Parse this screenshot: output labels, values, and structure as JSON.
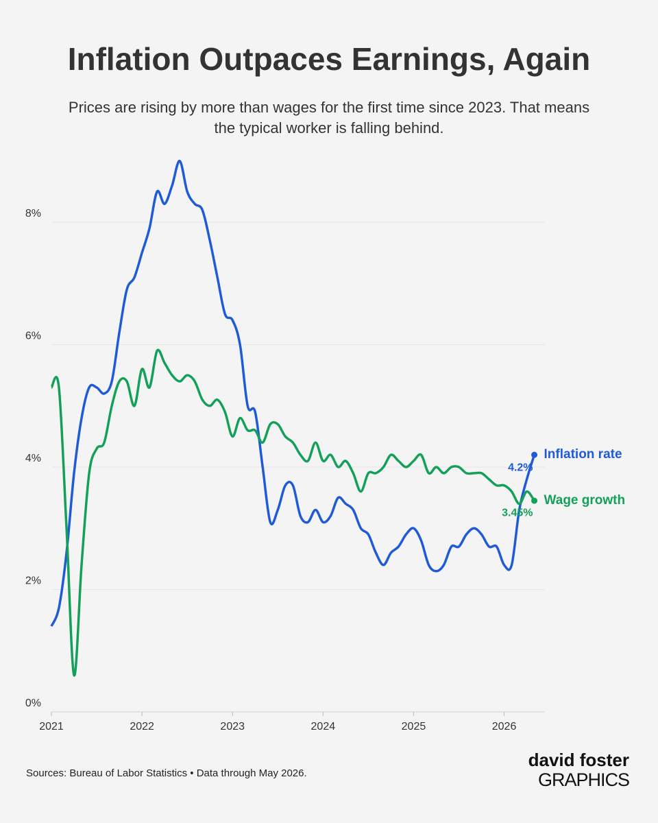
{
  "chart_data": {
    "type": "line",
    "title": "Inflation Outpaces Earnings, Again",
    "subtitle": [
      "Prices are rising by more than wages for the first time since 2023. That means",
      "the typical worker is falling behind."
    ],
    "x": [
      2021,
      2021.083,
      2021.167,
      2021.25,
      2021.333,
      2021.417,
      2021.5,
      2021.583,
      2021.667,
      2021.75,
      2021.833,
      2021.917,
      2022,
      2022.083,
      2022.167,
      2022.25,
      2022.333,
      2022.417,
      2022.5,
      2022.583,
      2022.667,
      2022.75,
      2022.833,
      2022.917,
      2023,
      2023.083,
      2023.167,
      2023.25,
      2023.333,
      2023.417,
      2023.5,
      2023.583,
      2023.667,
      2023.75,
      2023.833,
      2023.917,
      2024,
      2024.083,
      2024.167,
      2024.25,
      2024.333,
      2024.417,
      2024.5,
      2024.583,
      2024.667,
      2024.75,
      2024.833,
      2024.917,
      2025,
      2025.083,
      2025.167,
      2025.25,
      2025.333,
      2025.417,
      2025.5,
      2025.583,
      2025.667,
      2025.75,
      2025.833,
      2025.917,
      2026,
      2026.083,
      2026.167,
      2026.25,
      2026.333
    ],
    "series": [
      {
        "name": "Inflation rate",
        "color": "#1f5bd6",
        "end_label": "4.2%",
        "values": [
          1.4,
          1.7,
          2.6,
          3.9,
          4.8,
          5.3,
          5.3,
          5.2,
          5.4,
          6.2,
          6.9,
          7.1,
          7.5,
          7.9,
          8.5,
          8.3,
          8.6,
          9.0,
          8.5,
          8.3,
          8.2,
          7.7,
          7.1,
          6.5,
          6.4,
          6.0,
          5.0,
          4.9,
          4.0,
          3.1,
          3.3,
          3.7,
          3.7,
          3.2,
          3.1,
          3.3,
          3.1,
          3.2,
          3.5,
          3.4,
          3.3,
          3.0,
          2.9,
          2.6,
          2.4,
          2.6,
          2.7,
          2.9,
          3.0,
          2.8,
          2.4,
          2.3,
          2.4,
          2.7,
          2.7,
          2.9,
          3.0,
          2.9,
          2.7,
          2.7,
          2.4,
          2.4,
          3.3,
          3.8,
          4.2
        ]
      },
      {
        "name": "Wage growth",
        "color": "#14a05a",
        "end_label": "3.45%",
        "values": [
          5.3,
          5.3,
          3.0,
          0.6,
          2.4,
          3.9,
          4.3,
          4.4,
          5.0,
          5.4,
          5.4,
          5.0,
          5.6,
          5.3,
          5.9,
          5.7,
          5.5,
          5.4,
          5.5,
          5.4,
          5.1,
          5.0,
          5.1,
          4.9,
          4.5,
          4.8,
          4.6,
          4.6,
          4.4,
          4.7,
          4.7,
          4.5,
          4.4,
          4.2,
          4.1,
          4.4,
          4.1,
          4.2,
          4.0,
          4.1,
          3.9,
          3.6,
          3.9,
          3.9,
          4.0,
          4.2,
          4.1,
          4.0,
          4.1,
          4.2,
          3.9,
          4.0,
          3.9,
          4.0,
          4.0,
          3.9,
          3.9,
          3.9,
          3.8,
          3.7,
          3.7,
          3.6,
          3.4,
          3.6,
          3.45
        ]
      }
    ],
    "xlim": [
      2021,
      2026.45
    ],
    "xticks": [
      2021,
      2022,
      2023,
      2024,
      2025,
      2026
    ],
    "ylim": [
      0,
      9
    ],
    "yticks": [
      {
        "value": 0,
        "label": "0%"
      },
      {
        "value": 2,
        "label": "2%"
      },
      {
        "value": 4,
        "label": "4%"
      },
      {
        "value": 6,
        "label": "6%"
      },
      {
        "value": 8,
        "label": "8%"
      }
    ],
    "grid": true,
    "source": "Sources: Bureau of Labor Statistics • Data through May 2026.",
    "brand": [
      "david foster",
      "GRAPHICS"
    ]
  }
}
